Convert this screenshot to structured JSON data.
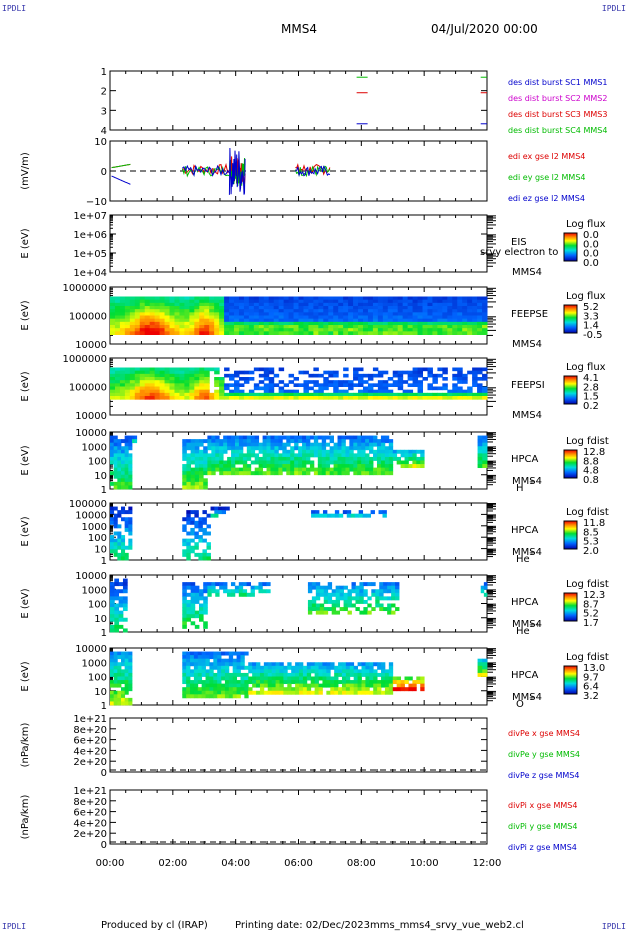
{
  "corners": {
    "tl": "IPDLI",
    "tr": "IPDLI",
    "bl": "IPDLI",
    "br": "IPDLI"
  },
  "header": {
    "spacecraft": "MMS4",
    "date": "04/Jul/2020 00:00"
  },
  "footer": {
    "produced_by": "Produced by cl (IRAP)",
    "printing_date": "Printing date: 02/Dec/2023",
    "script": "mms_mms4_srvy_vue_web2.cl"
  },
  "colors": {
    "red": "#dd0000",
    "green": "#00bb00",
    "blue": "#0000cc",
    "magenta": "#cc00cc"
  },
  "chart_data": [
    {
      "type": "line",
      "id": "burst",
      "yticks": [
        "1",
        "2",
        "3",
        "4"
      ],
      "ylim": [
        0.6,
        4.4
      ],
      "xlim": [
        0,
        12
      ],
      "series": [
        {
          "name": "des dist burst SC1 MMS1",
          "color": "#0000cc",
          "y": 1,
          "x_ranges": [
            [
              7.85,
              8.2
            ],
            [
              11.8,
              12
            ]
          ]
        },
        {
          "name": "des dist burst SC2 MMS2",
          "color": "#cc00cc",
          "y": 2,
          "x_ranges": []
        },
        {
          "name": "des dist burst SC3 MMS3",
          "color": "#dd0000",
          "y": 3,
          "x_ranges": [
            [
              7.85,
              8.2
            ],
            [
              11.8,
              12
            ]
          ]
        },
        {
          "name": "des dist burst SC4 MMS4",
          "color": "#00bb00",
          "y": 4,
          "x_ranges": [
            [
              7.85,
              8.2
            ],
            [
              11.8,
              12
            ]
          ]
        }
      ]
    },
    {
      "type": "line",
      "id": "edi",
      "ylabel": "(mV/m)",
      "yticks": [
        "10",
        "0",
        "−10"
      ],
      "ylim": [
        -18,
        18
      ],
      "series": [
        {
          "name": "edi ex gse l2 MMS4",
          "color": "#dd0000"
        },
        {
          "name": "edi ey gse l2 MMS4",
          "color": "#00bb00"
        },
        {
          "name": "edi ez gse l2 MMS4",
          "color": "#0000cc"
        }
      ]
    },
    {
      "type": "heatmap",
      "id": "eis",
      "ylabel": "E (eV)",
      "yticks": [
        "1e+07",
        "1e+06",
        "1e+05",
        "1e+04"
      ],
      "label": [
        "EIS",
        "MMS4"
      ],
      "overlay": "srvy electron to",
      "cb_title": "Log flux",
      "cb_ticks": [
        "0.0",
        "0.0",
        "0.0",
        "0.0"
      ]
    },
    {
      "type": "heatmap",
      "id": "feepse",
      "ylabel": "E (eV)",
      "yticks": [
        "1000000",
        "100000",
        "10000"
      ],
      "label": [
        "FEEPSE",
        "MMS4"
      ],
      "cb_title": "Log flux",
      "cb_ticks": [
        "5.2",
        "3.3",
        "1.4",
        "-0.5"
      ]
    },
    {
      "type": "heatmap",
      "id": "feepsi",
      "ylabel": "E (eV)",
      "yticks": [
        "1000000",
        "100000",
        "10000"
      ],
      "label": [
        "FEEPSI",
        "MMS4"
      ],
      "cb_title": "Log flux",
      "cb_ticks": [
        "4.1",
        "2.8",
        "1.5",
        "0.2"
      ]
    },
    {
      "type": "heatmap",
      "id": "hpca_h",
      "ylabel": "E (eV)",
      "yticks": [
        "10000",
        "1000",
        "100",
        "10",
        "1"
      ],
      "label": [
        "HPCA",
        "MMS4",
        "H"
      ],
      "sup": "+",
      "cb_title": "Log fdist",
      "cb_ticks": [
        "12.8",
        "8.8",
        "4.8",
        "0.8"
      ]
    },
    {
      "type": "heatmap",
      "id": "hpca_he1",
      "ylabel": "E (eV)",
      "yticks": [
        "100000",
        "10000",
        "1000",
        "100",
        "10",
        "1"
      ],
      "label": [
        "HPCA",
        "MMS4",
        "He"
      ],
      "sup": "+",
      "cb_title": "Log fdist",
      "cb_ticks": [
        "11.8",
        "8.5",
        "5.3",
        "2.0"
      ]
    },
    {
      "type": "heatmap",
      "id": "hpca_he2",
      "ylabel": "E (eV)",
      "yticks": [
        "10000",
        "1000",
        "100",
        "10",
        "1"
      ],
      "label": [
        "HPCA",
        "MMS4",
        "He"
      ],
      "sup": "++",
      "cb_title": "Log fdist",
      "cb_ticks": [
        "12.3",
        "8.7",
        "5.2",
        "1.7"
      ]
    },
    {
      "type": "heatmap",
      "id": "hpca_o",
      "ylabel": "E (eV)",
      "yticks": [
        "10000",
        "1000",
        "100",
        "10",
        "1"
      ],
      "label": [
        "HPCA",
        "MMS4",
        "O"
      ],
      "sup": "+",
      "cb_title": "Log fdist",
      "cb_ticks": [
        "13.0",
        "9.7",
        "6.4",
        "3.2"
      ]
    },
    {
      "type": "line",
      "id": "divpe",
      "ylabel": "(nPa/km)",
      "yticks": [
        "1e+21",
        "8e+20",
        "6e+20",
        "4e+20",
        "2e+20",
        "0"
      ],
      "series": [
        {
          "name": "divPe x gse MMS4",
          "color": "#dd0000"
        },
        {
          "name": "divPe y gse MMS4",
          "color": "#00bb00"
        },
        {
          "name": "divPe z gse MMS4",
          "color": "#0000cc"
        }
      ]
    },
    {
      "type": "line",
      "id": "divpi",
      "ylabel": "(nPa/km)",
      "yticks": [
        "1e+21",
        "8e+20",
        "6e+20",
        "4e+20",
        "2e+20",
        "0"
      ],
      "series": [
        {
          "name": "divPi x gse MMS4",
          "color": "#dd0000"
        },
        {
          "name": "divPi y gse MMS4",
          "color": "#00bb00"
        },
        {
          "name": "divPi z gse MMS4",
          "color": "#0000cc"
        }
      ]
    }
  ],
  "xaxis": {
    "ticks": [
      "00:00",
      "02:00",
      "04:00",
      "06:00",
      "08:00",
      "10:00",
      "12:00"
    ]
  }
}
